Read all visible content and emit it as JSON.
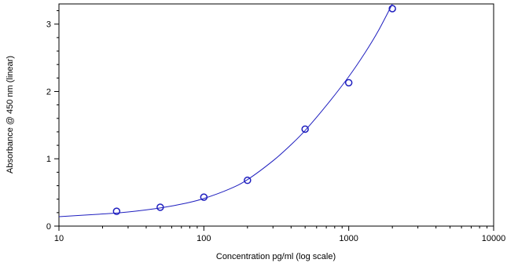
{
  "chart_data": {
    "type": "scatter",
    "title": "",
    "xlabel": "Concentration pg/ml (log scale)",
    "ylabel": "Absorbance @ 450 nm (linear)",
    "x_scale": "log",
    "y_scale": "linear",
    "xlim": [
      10,
      10000
    ],
    "ylim": [
      0,
      3.3
    ],
    "x_ticks": [
      10,
      100,
      1000,
      10000
    ],
    "x_tick_labels": [
      "10",
      "100",
      "1000",
      "10000"
    ],
    "y_ticks": [
      0,
      1,
      2,
      3
    ],
    "y_tick_labels": [
      "0",
      "1",
      "2",
      "3"
    ],
    "grid": false,
    "legend": "none",
    "series": [
      {
        "type": "scatter",
        "marker": "open-circle",
        "x": [
          25,
          50,
          100,
          200,
          500,
          1000,
          2000
        ],
        "y": [
          0.22,
          0.28,
          0.43,
          0.68,
          1.44,
          2.13,
          3.23
        ]
      },
      {
        "type": "line",
        "x": [
          10,
          20,
          30,
          50,
          75,
          100,
          150,
          200,
          300,
          400,
          500,
          700,
          1000,
          1300,
          1600,
          2000
        ],
        "y": [
          0.14,
          0.18,
          0.21,
          0.27,
          0.34,
          0.41,
          0.55,
          0.69,
          0.97,
          1.21,
          1.42,
          1.79,
          2.22,
          2.58,
          2.9,
          3.3
        ]
      }
    ],
    "colors": {
      "series": "#1f1fbf",
      "axes": "#000000"
    }
  }
}
